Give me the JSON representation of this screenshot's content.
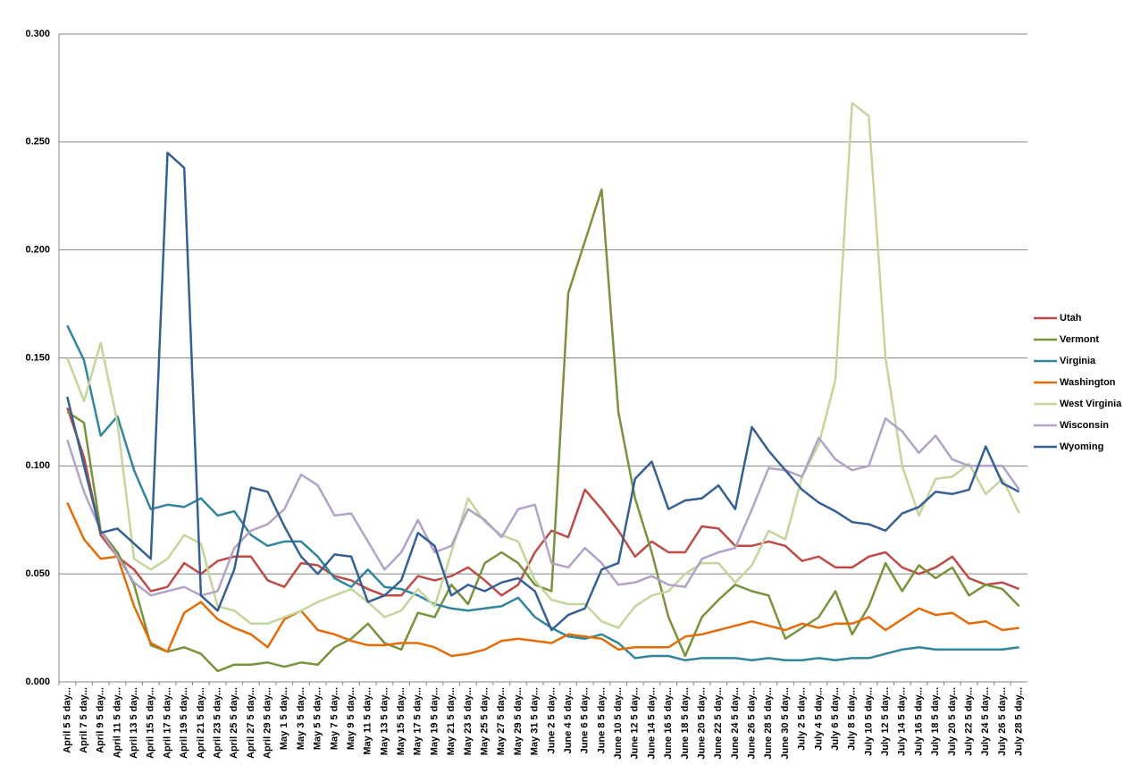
{
  "chart_data": {
    "type": "line",
    "categories": [
      "April 5 5 day...",
      "April 7 5 day...",
      "April 9 5 day...",
      "April 11 5 day...",
      "April 13 5 day...",
      "April 15 5 day...",
      "April 17 5 day...",
      "April 19 5 day...",
      "April 21 5 day...",
      "April 23 5 day...",
      "April 25 5 day...",
      "April 27 5 day...",
      "April 29 5 day...",
      "May 1 5 day...",
      "May 3 5 day...",
      "May 5 5 day...",
      "May 7 5 day...",
      "May 9 5 day...",
      "May 11 5 day...",
      "May 13 5 day...",
      "May 15 5 day...",
      "May 17 5 day...",
      "May 19 5 day...",
      "May 21 5 day...",
      "May 23 5 day...",
      "May 25 5 day...",
      "May 27 5 day...",
      "May 29 5 day...",
      "May 31 5 day...",
      "June 2 5 day...",
      "June 4 5 day...",
      "June 6 5 day...",
      "June 8 5 day...",
      "June 10 5 day...",
      "June 12 5 day...",
      "June 14 5 day...",
      "June 16 5 day...",
      "June 18 5 day...",
      "June 20 5 day...",
      "June 22 5 day...",
      "June 24 5 day...",
      "June 26 5 day...",
      "June 28 5 day...",
      "June 30 5 day...",
      "July 2 5 day...",
      "July 4 5 day...",
      "July 6 5 day...",
      "July 8 5 day...",
      "July 10 5 day...",
      "July 12 5 day...",
      "July 14 5 day...",
      "July 16 5 day...",
      "July 18 5 day...",
      "July 20 5 day...",
      "July 22 5 day...",
      "July 24 5 day...",
      "July 26 5 day...",
      "July 28 5 day..."
    ],
    "series": [
      {
        "name": "Utah",
        "color": "#be4b48",
        "values": [
          0.127,
          0.104,
          0.068,
          0.058,
          0.052,
          0.042,
          0.044,
          0.055,
          0.05,
          0.056,
          0.058,
          0.058,
          0.047,
          0.044,
          0.055,
          0.054,
          0.049,
          0.047,
          0.043,
          0.04,
          0.04,
          0.049,
          0.047,
          0.049,
          0.053,
          0.047,
          0.04,
          0.045,
          0.06,
          0.07,
          0.067,
          0.089,
          0.08,
          0.07,
          0.058,
          0.065,
          0.06,
          0.06,
          0.072,
          0.071,
          0.063,
          0.063,
          0.065,
          0.063,
          0.056,
          0.058,
          0.053,
          0.053,
          0.058,
          0.06,
          0.053,
          0.05,
          0.053,
          0.058,
          0.048,
          0.045,
          0.046,
          0.043
        ]
      },
      {
        "name": "Vermont",
        "color": "#77933c",
        "values": [
          0.125,
          0.12,
          0.07,
          0.06,
          0.045,
          0.017,
          0.014,
          0.016,
          0.013,
          0.005,
          0.008,
          0.008,
          0.009,
          0.007,
          0.009,
          0.008,
          0.016,
          0.02,
          0.027,
          0.018,
          0.015,
          0.032,
          0.03,
          0.045,
          0.036,
          0.055,
          0.06,
          0.055,
          0.045,
          0.042,
          0.18,
          0.204,
          0.228,
          0.125,
          0.085,
          0.06,
          0.03,
          0.012,
          0.03,
          0.038,
          0.045,
          0.042,
          0.04,
          0.02,
          0.025,
          0.03,
          0.042,
          0.022,
          0.035,
          0.055,
          0.042,
          0.054,
          0.048,
          0.053,
          0.04,
          0.045,
          0.043,
          0.035
        ]
      },
      {
        "name": "Virginia",
        "color": "#31859c",
        "values": [
          0.165,
          0.149,
          0.114,
          0.123,
          0.098,
          0.08,
          0.082,
          0.081,
          0.085,
          0.077,
          0.079,
          0.068,
          0.063,
          0.065,
          0.065,
          0.058,
          0.048,
          0.044,
          0.052,
          0.044,
          0.043,
          0.04,
          0.036,
          0.034,
          0.033,
          0.034,
          0.035,
          0.039,
          0.03,
          0.025,
          0.021,
          0.02,
          0.022,
          0.018,
          0.011,
          0.012,
          0.012,
          0.01,
          0.011,
          0.011,
          0.011,
          0.01,
          0.011,
          0.01,
          0.01,
          0.011,
          0.01,
          0.011,
          0.011,
          0.013,
          0.015,
          0.016,
          0.015,
          0.015,
          0.015,
          0.015,
          0.015,
          0.016
        ]
      },
      {
        "name": "Washington",
        "color": "#e46c0a",
        "values": [
          0.083,
          0.066,
          0.057,
          0.058,
          0.035,
          0.018,
          0.014,
          0.032,
          0.037,
          0.029,
          0.025,
          0.022,
          0.016,
          0.029,
          0.033,
          0.024,
          0.022,
          0.019,
          0.017,
          0.017,
          0.018,
          0.018,
          0.016,
          0.012,
          0.013,
          0.015,
          0.019,
          0.02,
          0.019,
          0.018,
          0.022,
          0.021,
          0.02,
          0.015,
          0.016,
          0.016,
          0.016,
          0.021,
          0.022,
          0.024,
          0.026,
          0.028,
          0.026,
          0.024,
          0.027,
          0.025,
          0.027,
          0.027,
          0.03,
          0.024,
          0.029,
          0.034,
          0.031,
          0.032,
          0.027,
          0.028,
          0.024,
          0.025
        ]
      },
      {
        "name": "West Virginia",
        "color": "#c3d69b",
        "values": [
          0.15,
          0.13,
          0.157,
          0.12,
          0.057,
          0.052,
          0.057,
          0.068,
          0.064,
          0.035,
          0.033,
          0.027,
          0.027,
          0.03,
          0.033,
          0.037,
          0.04,
          0.043,
          0.037,
          0.03,
          0.033,
          0.043,
          0.035,
          0.06,
          0.085,
          0.074,
          0.068,
          0.065,
          0.047,
          0.038,
          0.036,
          0.036,
          0.028,
          0.025,
          0.035,
          0.04,
          0.042,
          0.05,
          0.055,
          0.055,
          0.046,
          0.054,
          0.07,
          0.066,
          0.095,
          0.11,
          0.14,
          0.268,
          0.262,
          0.15,
          0.1,
          0.077,
          0.094,
          0.095,
          0.101,
          0.087,
          0.094,
          0.078
        ]
      },
      {
        "name": "Wisconsin",
        "color": "#b3a2c7",
        "values": [
          0.112,
          0.088,
          0.07,
          0.058,
          0.046,
          0.04,
          0.042,
          0.044,
          0.04,
          0.042,
          0.062,
          0.07,
          0.073,
          0.08,
          0.096,
          0.091,
          0.077,
          0.078,
          0.065,
          0.052,
          0.06,
          0.075,
          0.06,
          0.063,
          0.08,
          0.075,
          0.067,
          0.08,
          0.082,
          0.055,
          0.053,
          0.062,
          0.055,
          0.045,
          0.046,
          0.049,
          0.045,
          0.044,
          0.057,
          0.06,
          0.062,
          0.08,
          0.099,
          0.098,
          0.095,
          0.113,
          0.103,
          0.098,
          0.1,
          0.122,
          0.116,
          0.106,
          0.114,
          0.103,
          0.1,
          0.1,
          0.1,
          0.089
        ]
      },
      {
        "name": "Wyoming",
        "color": "#376092",
        "values": [
          0.132,
          0.1,
          0.069,
          0.071,
          0.064,
          0.057,
          0.245,
          0.238,
          0.04,
          0.033,
          0.052,
          0.09,
          0.088,
          0.072,
          0.058,
          0.05,
          0.059,
          0.058,
          0.037,
          0.04,
          0.047,
          0.069,
          0.063,
          0.04,
          0.045,
          0.042,
          0.046,
          0.048,
          0.042,
          0.024,
          0.031,
          0.034,
          0.052,
          0.055,
          0.094,
          0.102,
          0.08,
          0.084,
          0.085,
          0.091,
          0.08,
          0.118,
          0.107,
          0.098,
          0.089,
          0.083,
          0.079,
          0.074,
          0.073,
          0.07,
          0.078,
          0.081,
          0.088,
          0.087,
          0.089,
          0.109,
          0.092,
          0.088
        ]
      }
    ],
    "ylim": [
      0,
      0.3
    ],
    "yticks": [
      {
        "value": 0,
        "label": "0.000"
      },
      {
        "value": 0.05,
        "label": "0.050"
      },
      {
        "value": 0.1,
        "label": "0.100"
      },
      {
        "value": 0.15,
        "label": "0.150"
      },
      {
        "value": 0.2,
        "label": "0.200"
      },
      {
        "value": 0.25,
        "label": "0.250"
      },
      {
        "value": 0.3,
        "label": "0.300"
      }
    ],
    "grid": true,
    "legend": "right"
  }
}
